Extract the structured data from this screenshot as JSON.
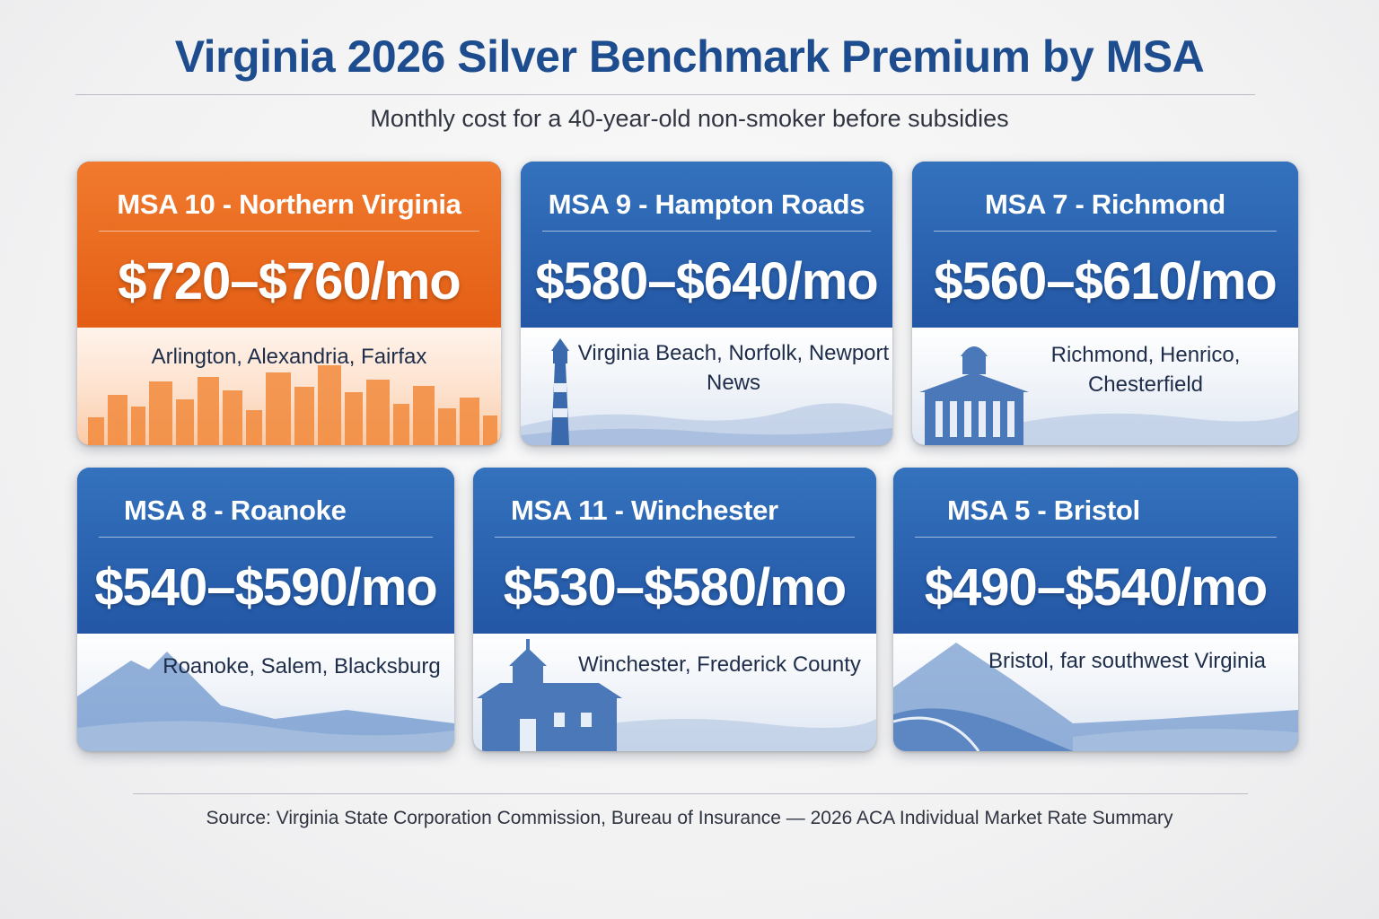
{
  "title": "Virginia 2026 Silver Benchmark Premium by MSA",
  "subtitle": "Monthly cost for a 40-year-old non-smoker before subsidies",
  "cards": [
    {
      "name": "MSA 10 - Northern Virginia",
      "price": "$720–$760/mo",
      "cities": "Arlington, Alexandria, Fairfax",
      "accent": "#e8661c",
      "icon": "city-skyline-icon"
    },
    {
      "name": "MSA 9 - Hampton Roads",
      "price": "$580–$640/mo",
      "cities": "Virginia Beach, Norfolk, Newport News",
      "accent": "#2a62ae",
      "icon": "lighthouse-icon"
    },
    {
      "name": "MSA 7 - Richmond",
      "price": "$560–$610/mo",
      "cities": "Richmond, Henrico, Chesterfield",
      "accent": "#2a62ae",
      "icon": "capitol-building-icon"
    },
    {
      "name": "MSA 8 - Roanoke",
      "price": "$540–$590/mo",
      "cities": "Roanoke, Salem, Blacksburg",
      "accent": "#2a62ae",
      "icon": "mountain-icon"
    },
    {
      "name": "MSA 11 - Winchester",
      "price": "$530–$580/mo",
      "cities": "Winchester, Frederick County",
      "accent": "#2a62ae",
      "icon": "church-icon"
    },
    {
      "name": "MSA 5 - Bristol",
      "price": "$490–$540/mo",
      "cities": "Bristol, far southwest Virginia",
      "accent": "#2a62ae",
      "icon": "mountain-road-icon"
    }
  ],
  "source": "Source: Virginia State Corporation Commission, Bureau of Insurance — 2026 ACA Individual Market Rate Summary"
}
